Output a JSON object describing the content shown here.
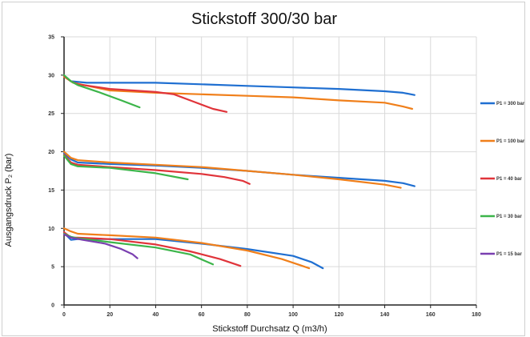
{
  "chart_data": {
    "type": "line",
    "title": "Stickstoff 300/30 bar",
    "xlabel": "Stickstoff Durchsatz Q (m3/h)",
    "ylabel": "Ausgangsdruck P₂ (bar)",
    "xlim": [
      0,
      180
    ],
    "ylim": [
      0,
      35
    ],
    "x_ticks": [
      0,
      20,
      40,
      60,
      80,
      100,
      120,
      140,
      160,
      180
    ],
    "y_ticks": [
      0,
      5,
      10,
      15,
      20,
      25,
      30,
      35
    ],
    "grid": true,
    "legend_position": "right",
    "series": [
      {
        "name": "P1 = 300 bar",
        "color": "#1f6fd1",
        "curves": [
          [
            [
              0,
              29.9
            ],
            [
              3,
              29.2
            ],
            [
              10,
              29.0
            ],
            [
              20,
              29.0
            ],
            [
              40,
              29.0
            ],
            [
              60,
              28.8
            ],
            [
              80,
              28.6
            ],
            [
              100,
              28.4
            ],
            [
              120,
              28.2
            ],
            [
              140,
              27.9
            ],
            [
              148,
              27.7
            ],
            [
              153,
              27.4
            ]
          ],
          [
            [
              0,
              19.8
            ],
            [
              3,
              19.0
            ],
            [
              6,
              18.6
            ],
            [
              20,
              18.4
            ],
            [
              40,
              18.2
            ],
            [
              60,
              17.9
            ],
            [
              80,
              17.5
            ],
            [
              100,
              17.0
            ],
            [
              120,
              16.6
            ],
            [
              140,
              16.2
            ],
            [
              148,
              15.9
            ],
            [
              153,
              15.5
            ]
          ],
          [
            [
              0,
              9.4
            ],
            [
              3,
              8.5
            ],
            [
              6,
              8.6
            ],
            [
              20,
              8.6
            ],
            [
              40,
              8.6
            ],
            [
              60,
              8.0
            ],
            [
              80,
              7.3
            ],
            [
              100,
              6.4
            ],
            [
              108,
              5.6
            ],
            [
              113,
              4.8
            ]
          ]
        ]
      },
      {
        "name": "P1 = 100 bar",
        "color": "#f07f1a",
        "curves": [
          [
            [
              0,
              29.8
            ],
            [
              4,
              29.0
            ],
            [
              20,
              28.0
            ],
            [
              40,
              27.7
            ],
            [
              60,
              27.5
            ],
            [
              80,
              27.3
            ],
            [
              100,
              27.1
            ],
            [
              120,
              26.7
            ],
            [
              140,
              26.4
            ],
            [
              148,
              25.9
            ],
            [
              152,
              25.6
            ]
          ],
          [
            [
              0,
              20.0
            ],
            [
              3,
              19.2
            ],
            [
              6,
              18.9
            ],
            [
              20,
              18.6
            ],
            [
              40,
              18.3
            ],
            [
              60,
              18.0
            ],
            [
              80,
              17.5
            ],
            [
              100,
              17.0
            ],
            [
              120,
              16.4
            ],
            [
              140,
              15.7
            ],
            [
              147,
              15.3
            ]
          ],
          [
            [
              0,
              10.0
            ],
            [
              3,
              9.6
            ],
            [
              6,
              9.3
            ],
            [
              20,
              9.1
            ],
            [
              40,
              8.8
            ],
            [
              60,
              8.1
            ],
            [
              80,
              7.1
            ],
            [
              95,
              6.0
            ],
            [
              103,
              5.2
            ],
            [
              107,
              4.8
            ]
          ]
        ]
      },
      {
        "name": "P1 = 40 bar",
        "color": "#e0343a",
        "curves": [
          [
            [
              0,
              29.9
            ],
            [
              3,
              29.2
            ],
            [
              6,
              28.8
            ],
            [
              20,
              28.2
            ],
            [
              40,
              27.8
            ],
            [
              48,
              27.5
            ],
            [
              56,
              26.6
            ],
            [
              65,
              25.6
            ],
            [
              71,
              25.2
            ]
          ],
          [
            [
              0,
              19.6
            ],
            [
              3,
              18.6
            ],
            [
              6,
              18.3
            ],
            [
              20,
              18.0
            ],
            [
              40,
              17.6
            ],
            [
              60,
              17.1
            ],
            [
              70,
              16.7
            ],
            [
              78,
              16.2
            ],
            [
              81,
              15.8
            ]
          ],
          [
            [
              0,
              9.5
            ],
            [
              3,
              8.8
            ],
            [
              6,
              8.8
            ],
            [
              20,
              8.6
            ],
            [
              40,
              7.9
            ],
            [
              55,
              7.0
            ],
            [
              68,
              6.0
            ],
            [
              77,
              5.1
            ]
          ]
        ]
      },
      {
        "name": "P1 = 30 bar",
        "color": "#3cb54a",
        "curves": [
          [
            [
              0,
              30.0
            ],
            [
              3,
              29.2
            ],
            [
              6,
              28.7
            ],
            [
              15,
              27.8
            ],
            [
              25,
              26.7
            ],
            [
              33,
              25.8
            ]
          ],
          [
            [
              0,
              19.5
            ],
            [
              3,
              18.4
            ],
            [
              6,
              18.1
            ],
            [
              20,
              17.9
            ],
            [
              40,
              17.2
            ],
            [
              54,
              16.4
            ]
          ],
          [
            [
              0,
              9.3
            ],
            [
              3,
              8.9
            ],
            [
              6,
              8.7
            ],
            [
              20,
              8.2
            ],
            [
              40,
              7.5
            ],
            [
              55,
              6.6
            ],
            [
              65,
              5.3
            ]
          ]
        ]
      },
      {
        "name": "P1 = 15 bar",
        "color": "#7a3fb0",
        "curves": [
          [
            [
              0,
              9.2
            ],
            [
              3,
              8.8
            ],
            [
              8,
              8.5
            ],
            [
              18,
              8.0
            ],
            [
              25,
              7.3
            ],
            [
              30,
              6.6
            ],
            [
              32,
              6.1
            ]
          ]
        ]
      }
    ]
  }
}
